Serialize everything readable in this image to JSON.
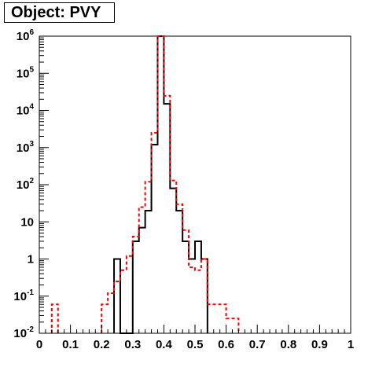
{
  "title": "Object: PVY",
  "chart_data": {
    "type": "histogram",
    "title": "Object: PVY",
    "xlabel": "",
    "ylabel": "",
    "xlim": [
      0,
      1
    ],
    "ylim": [
      0.01,
      1000000
    ],
    "yscale": "log",
    "xticks": [
      {
        "value": 0,
        "label": "0"
      },
      {
        "value": 0.1,
        "label": "0.1"
      },
      {
        "value": 0.2,
        "label": "0.2"
      },
      {
        "value": 0.3,
        "label": "0.3"
      },
      {
        "value": 0.4,
        "label": "0.4"
      },
      {
        "value": 0.5,
        "label": "0.5"
      },
      {
        "value": 0.6,
        "label": "0.6"
      },
      {
        "value": 0.7,
        "label": "0.7"
      },
      {
        "value": 0.8,
        "label": "0.8"
      },
      {
        "value": 0.9,
        "label": "0.9"
      },
      {
        "value": 1,
        "label": "1"
      }
    ],
    "yticks": [
      {
        "value": 0.01,
        "base": "10",
        "exp": "-2"
      },
      {
        "value": 0.1,
        "base": "10",
        "exp": "-1"
      },
      {
        "value": 1,
        "base": "1",
        "exp": ""
      },
      {
        "value": 10,
        "base": "10",
        "exp": ""
      },
      {
        "value": 100,
        "base": "10",
        "exp": "2"
      },
      {
        "value": 1000,
        "base": "10",
        "exp": "3"
      },
      {
        "value": 10000,
        "base": "10",
        "exp": "4"
      },
      {
        "value": 100000,
        "base": "10",
        "exp": "5"
      },
      {
        "value": 1000000,
        "base": "10",
        "exp": "6"
      }
    ],
    "series": [
      {
        "color": "#000000",
        "style": "solid",
        "bins": [
          {
            "x0": 0.24,
            "x1": 0.26,
            "y": 1
          },
          {
            "x0": 0.26,
            "x1": 0.3,
            "y": 0.01
          },
          {
            "x0": 0.3,
            "x1": 0.32,
            "y": 3
          },
          {
            "x0": 0.32,
            "x1": 0.34,
            "y": 7
          },
          {
            "x0": 0.34,
            "x1": 0.36,
            "y": 20
          },
          {
            "x0": 0.36,
            "x1": 0.38,
            "y": 1200
          },
          {
            "x0": 0.38,
            "x1": 0.4,
            "y": 1000000
          },
          {
            "x0": 0.4,
            "x1": 0.42,
            "y": 15000
          },
          {
            "x0": 0.42,
            "x1": 0.44,
            "y": 80
          },
          {
            "x0": 0.44,
            "x1": 0.46,
            "y": 20
          },
          {
            "x0": 0.46,
            "x1": 0.48,
            "y": 3
          },
          {
            "x0": 0.48,
            "x1": 0.5,
            "y": 1
          },
          {
            "x0": 0.5,
            "x1": 0.52,
            "y": 3
          },
          {
            "x0": 0.52,
            "x1": 0.54,
            "y": 1
          }
        ]
      },
      {
        "color": "#ff0000",
        "style": "dashed",
        "bins": [
          {
            "x0": 0.04,
            "x1": 0.06,
            "y": 0.06
          },
          {
            "x0": 0.2,
            "x1": 0.22,
            "y": 0.06
          },
          {
            "x0": 0.22,
            "x1": 0.24,
            "y": 0.12
          },
          {
            "x0": 0.24,
            "x1": 0.26,
            "y": 0.25
          },
          {
            "x0": 0.26,
            "x1": 0.28,
            "y": 0.5
          },
          {
            "x0": 0.28,
            "x1": 0.3,
            "y": 1.2
          },
          {
            "x0": 0.3,
            "x1": 0.32,
            "y": 4
          },
          {
            "x0": 0.32,
            "x1": 0.34,
            "y": 25
          },
          {
            "x0": 0.34,
            "x1": 0.36,
            "y": 120
          },
          {
            "x0": 0.36,
            "x1": 0.38,
            "y": 2500
          },
          {
            "x0": 0.38,
            "x1": 0.4,
            "y": 1000000
          },
          {
            "x0": 0.4,
            "x1": 0.42,
            "y": 25000
          },
          {
            "x0": 0.42,
            "x1": 0.44,
            "y": 130
          },
          {
            "x0": 0.44,
            "x1": 0.46,
            "y": 30
          },
          {
            "x0": 0.46,
            "x1": 0.48,
            "y": 6
          },
          {
            "x0": 0.48,
            "x1": 0.5,
            "y": 0.6
          },
          {
            "x0": 0.5,
            "x1": 0.52,
            "y": 0.5
          },
          {
            "x0": 0.52,
            "x1": 0.54,
            "y": 1
          },
          {
            "x0": 0.54,
            "x1": 0.6,
            "y": 0.06
          },
          {
            "x0": 0.6,
            "x1": 0.62,
            "y": 0.025
          },
          {
            "x0": 0.62,
            "x1": 0.64,
            "y": 0.025
          }
        ]
      }
    ]
  }
}
